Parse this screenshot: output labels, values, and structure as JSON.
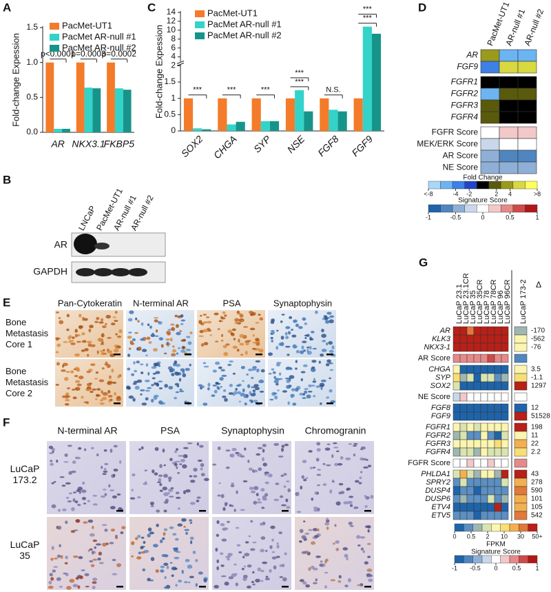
{
  "chart_data": [
    {
      "type": "bar",
      "panel": "A",
      "y_label": "Fold-change Expession",
      "categories": [
        "AR",
        "NKX3.1",
        "FKBP5"
      ],
      "series": [
        {
          "name": "PacMet-UT1",
          "color": "#f47b2a",
          "values": [
            1,
            1,
            1
          ]
        },
        {
          "name": "PacMet AR-null #1",
          "color": "#33d3c9",
          "values": [
            0.05,
            0.64,
            0.63
          ]
        },
        {
          "name": "PacMet AR-null #2",
          "color": "#17948a",
          "values": [
            0.05,
            0.63,
            0.61
          ]
        }
      ],
      "ylim": [
        0,
        1.5
      ],
      "yticks": [
        {
          "value": 0,
          "label": "0.0"
        },
        {
          "value": 0.5,
          "label": "0.5"
        },
        {
          "value": 1,
          "label": "1.0"
        },
        {
          "value": 1.5,
          "label": "1.5"
        }
      ],
      "annotations": [
        "p<0.0001",
        "p=0.0003",
        "p=0.0002"
      ]
    },
    {
      "type": "bar",
      "panel": "C",
      "y_label": "Fold-change Expession",
      "categories": [
        "SOX2",
        "CHGA",
        "SYP",
        "NSE",
        "FGF8",
        "FGF9"
      ],
      "series": [
        {
          "name": "PacMet-UT1",
          "color": "#f47b2a",
          "values": [
            1,
            1,
            1,
            1,
            1,
            1
          ]
        },
        {
          "name": "PacMet AR-null #1",
          "color": "#33d3c9",
          "values": [
            0.08,
            0.2,
            0.3,
            1.25,
            0.65,
            10.8
          ]
        },
        {
          "name": "PacMet AR-null #2",
          "color": "#17948a",
          "values": [
            0.05,
            0.28,
            0.3,
            0.6,
            0.6,
            9.2
          ]
        }
      ],
      "ylim": [
        0,
        14
      ],
      "y_break": 2,
      "yticks": [
        0,
        0.5,
        1,
        1.5,
        2,
        4,
        6,
        8,
        10,
        12,
        14
      ],
      "annotations": [
        [
          "***"
        ],
        [
          "***"
        ],
        [
          "***"
        ],
        [
          "***",
          "***"
        ],
        [
          "N.S."
        ],
        [
          "***",
          "***"
        ]
      ]
    }
  ],
  "blot_b": {
    "panel": "B",
    "lanes": [
      "LNCaP",
      "PacMet-UT1",
      "AR-null #1",
      "AR-null #2"
    ],
    "bands": [
      "AR",
      "GAPDH"
    ]
  },
  "heatmap_d": {
    "panel": "D",
    "columns": [
      "PacMet-UT1",
      "AR-null #1",
      "AR-null #2"
    ],
    "groups": [
      [
        {
          "label": "AR",
          "scale": "fold",
          "values": [
            4,
            -5,
            -5
          ]
        },
        {
          "label": "FGF9",
          "scale": "fold",
          "values": [
            -4,
            6,
            6
          ]
        }
      ],
      [
        {
          "label": "FGFR1",
          "scale": "fold",
          "values": [
            0,
            0,
            0
          ]
        },
        {
          "label": "FGFR2",
          "scale": "fold",
          "values": [
            -6,
            2,
            2
          ]
        },
        {
          "label": "FGFR3",
          "scale": "fold",
          "values": [
            2,
            0,
            0
          ]
        },
        {
          "label": "FGFR4",
          "scale": "fold",
          "values": [
            2,
            0,
            0
          ]
        }
      ],
      [
        {
          "label": "FGFR Score",
          "scale": "score",
          "values": [
            0.1,
            0.3,
            0.3
          ]
        },
        {
          "label": "MEK/ERK Score",
          "scale": "score",
          "values": [
            -0.3,
            0.1,
            0.05
          ]
        },
        {
          "label": "AR Score",
          "scale": "score",
          "values": [
            -0.5,
            -0.6,
            -0.6
          ]
        },
        {
          "label": "NE Score",
          "scale": "score",
          "values": [
            -0.4,
            -0.4,
            -0.4
          ]
        }
      ]
    ],
    "fold_legend": {
      "title": "Fold Change",
      "ticks": [
        {
          "value": -8,
          "label": "<-8"
        },
        -4,
        -2,
        2,
        4,
        {
          "value": 8,
          "label": ">8"
        }
      ],
      "colors": [
        "#a8d8f8",
        "#6cb4f2",
        "#3d80e6",
        "#1f45c8",
        "#000000",
        "#5a5a0c",
        "#9a9a1c",
        "#d8d840",
        "#ffff5a"
      ]
    },
    "score_legend": {
      "title": "Signature Score",
      "ticks": [
        -1,
        -0.5,
        0,
        0.5,
        1
      ],
      "colors": [
        "#1f64aa",
        "#4f86c0",
        "#8fb0d6",
        "#c8d8ea",
        "#ffffff",
        "#f3c8c8",
        "#e58a8a",
        "#d04a4a",
        "#b01818"
      ]
    }
  },
  "panel_e": {
    "panel": "E",
    "columns": [
      "Pan-Cytokeratin",
      "N-terminal AR",
      "PSA",
      "Synaptophysin"
    ],
    "rows": [
      "Bone Metastasis Core 1",
      "Bone Metastasis Core 2"
    ]
  },
  "panel_f": {
    "panel": "F",
    "columns": [
      "N-terminal AR",
      "PSA",
      "Synaptophysin",
      "Chromogranin"
    ],
    "rows": [
      "LuCaP 173.2",
      "LuCaP 35"
    ]
  },
  "heatmap_g": {
    "panel": "G",
    "columns": [
      "LuCaP 23.1",
      "LuCaP 23.1CR",
      "LuCaP 35",
      "LuCaP 35CR",
      "LuCaP 78",
      "LuCaP 78CR",
      "LuCaP 96",
      "LuCaP 96CR",
      "LuCaP 173-2"
    ],
    "delta_header": "Δ",
    "groups": [
      [
        {
          "label": "AR",
          "scale": "fpkm",
          "values": [
            45,
            60,
            35,
            55,
            40,
            60,
            45,
            55,
            1
          ],
          "delta": -170
        },
        {
          "label": "KLK3",
          "scale": "fpkm",
          "values": [
            80,
            80,
            80,
            80,
            80,
            80,
            80,
            80,
            6
          ],
          "delta": -562
        },
        {
          "label": "NKX3-1",
          "scale": "fpkm",
          "values": [
            70,
            70,
            70,
            70,
            70,
            70,
            70,
            70,
            5
          ],
          "delta": -76
        }
      ],
      [
        {
          "label": "AR Score",
          "scale": "score",
          "values": [
            0.5,
            0.5,
            0.55,
            0.5,
            0.55,
            0.6,
            0.5,
            0.5,
            -0.7
          ]
        }
      ],
      [
        {
          "label": "CHGA",
          "scale": "fpkm",
          "values": [
            8,
            0.1,
            0.1,
            0.1,
            0.1,
            0.1,
            0.1,
            0.1,
            8
          ],
          "delta": 3.5
        },
        {
          "label": "SYP",
          "scale": "fpkm",
          "values": [
            10,
            1,
            2,
            0.2,
            1.5,
            2.5,
            0.5,
            1,
            12
          ],
          "delta": -1.1
        },
        {
          "label": "SOX2",
          "scale": "fpkm",
          "values": [
            3,
            0.1,
            0.1,
            0.1,
            0.1,
            0.1,
            0.1,
            0.1,
            60
          ],
          "delta": 1297
        }
      ],
      [
        {
          "label": "NE Score",
          "scale": "score",
          "values": [
            -0.2,
            0.2,
            -0.1,
            0.1,
            -0.1,
            0,
            0,
            0.1,
            0
          ]
        }
      ],
      [
        {
          "label": "FGF8",
          "scale": "fpkm",
          "values": [
            0.05,
            0.05,
            0.05,
            0.05,
            0.05,
            0.05,
            0.05,
            0.05,
            0.1
          ],
          "delta": 12
        },
        {
          "label": "FGF9",
          "scale": "fpkm",
          "values": [
            0.05,
            0.05,
            0.05,
            0.05,
            0.05,
            0.05,
            0.05,
            0.05,
            65
          ],
          "delta": 51528
        }
      ],
      [
        {
          "label": "FGFR1",
          "scale": "fpkm",
          "values": [
            5,
            3,
            5,
            3,
            4,
            6,
            5,
            4,
            45
          ],
          "delta": 198
        },
        {
          "label": "FGFR2",
          "scale": "fpkm",
          "values": [
            1,
            2,
            0.5,
            0.3,
            4,
            0.5,
            0.2,
            3,
            8
          ],
          "delta": 11
        },
        {
          "label": "FGFR3",
          "scale": "fpkm",
          "values": [
            6,
            5,
            7,
            5,
            8,
            6,
            12,
            7,
            20
          ],
          "delta": 22
        },
        {
          "label": "FGFR4",
          "scale": "fpkm",
          "values": [
            1,
            3,
            2,
            1,
            4,
            2,
            3,
            2,
            15
          ],
          "delta": 2.2
        }
      ],
      [
        {
          "label": "FGFR Score",
          "scale": "score",
          "values": [
            0.1,
            0.1,
            0.2,
            0.1,
            0.1,
            0.2,
            0.1,
            0.1,
            0.4
          ]
        }
      ],
      [
        {
          "label": "PHLDA1",
          "scale": "fpkm",
          "values": [
            2,
            25,
            3,
            1,
            6,
            4,
            1,
            45,
            60
          ],
          "delta": 43
        },
        {
          "label": "SPRY2",
          "scale": "fpkm",
          "values": [
            0.3,
            2,
            0.4,
            0.5,
            0.3,
            0.3,
            0.5,
            2,
            25
          ],
          "delta": 278
        },
        {
          "label": "DUSP4",
          "scale": "fpkm",
          "values": [
            0.2,
            0.5,
            0.3,
            0.2,
            0.3,
            0.3,
            0.3,
            0.4,
            30
          ],
          "delta": 590
        },
        {
          "label": "DUSP6",
          "scale": "fpkm",
          "values": [
            0.3,
            1,
            0.5,
            0.3,
            0.4,
            3,
            0.4,
            1,
            25
          ],
          "delta": 101
        },
        {
          "label": "ETV4",
          "scale": "fpkm",
          "values": [
            0.1,
            0.1,
            0.2,
            0.1,
            0.1,
            0.1,
            55,
            0.2,
            20
          ],
          "delta": 105
        },
        {
          "label": "ETV5",
          "scale": "fpkm",
          "values": [
            0.5,
            0.3,
            0.4,
            0.2,
            0.3,
            0.3,
            0.4,
            0.5,
            30
          ],
          "delta": 542
        }
      ]
    ],
    "fpkm_legend": {
      "title": "FPKM",
      "ticks": [
        0,
        0.5,
        2,
        10,
        30,
        {
          "value": 50,
          "label": "50+"
        }
      ],
      "colors": [
        "#1f64aa",
        "#5c8fc2",
        "#9fb7b0",
        "#d9e4b0",
        "#fbf5b0",
        "#f8de78",
        "#f2b050",
        "#e2783a",
        "#b82018"
      ]
    },
    "score_legend": {
      "title": "Signature Score",
      "ticks": [
        -1,
        -0.5,
        0,
        0.5,
        1
      ],
      "colors": [
        "#1f64aa",
        "#4f86c0",
        "#8fb0d6",
        "#c8d8ea",
        "#ffffff",
        "#f3c8c8",
        "#e58a8a",
        "#d04a4a",
        "#b01818"
      ]
    }
  }
}
